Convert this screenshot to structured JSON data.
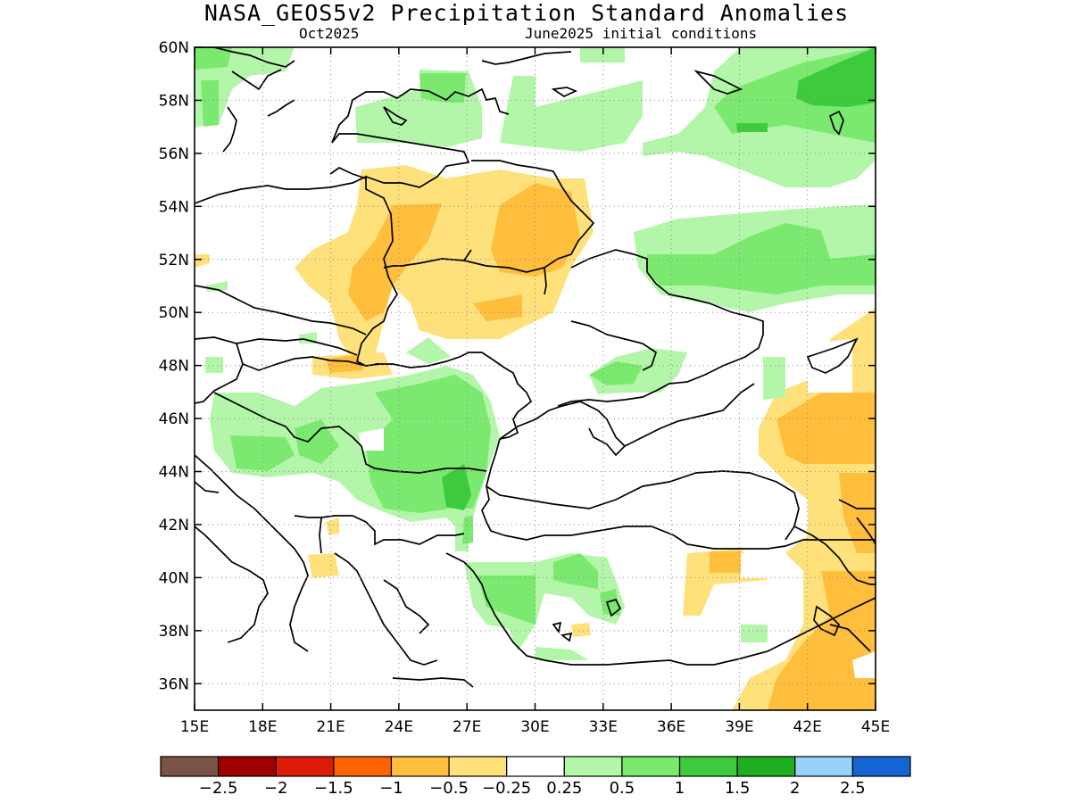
{
  "header": {
    "title": "NASA_GEOS5v2 Precipitation Standard Anomalies",
    "valid_month": "Oct2025",
    "init_conditions": "June2025 initial conditions"
  },
  "map": {
    "region": "Eastern Europe, Black Sea and Anatolia",
    "lon_range": [
      15,
      45
    ],
    "lat_range": [
      35,
      60
    ],
    "lon_ticks": [
      "15E",
      "18E",
      "21E",
      "24E",
      "27E",
      "30E",
      "33E",
      "36E",
      "39E",
      "42E",
      "45E"
    ],
    "lat_ticks": [
      "36N",
      "38N",
      "40N",
      "42N",
      "44N",
      "46N",
      "48N",
      "50N",
      "52N",
      "54N",
      "56N",
      "58N",
      "60N"
    ],
    "grid": "dotted"
  },
  "colorbar": {
    "colors": [
      "#7a5246",
      "#a00000",
      "#dd1b0b",
      "#ff6200",
      "#ffbe3c",
      "#ffe17c",
      "#ffffff",
      "#b3f6aa",
      "#7be96f",
      "#3dcb3d",
      "#1fae1f",
      "#96d2fa",
      "#1664d2"
    ],
    "labels": [
      "−2.5",
      "−2",
      "−1.5",
      "−1",
      "−0.5",
      "−0.25",
      "0.25",
      "0.5",
      "1",
      "1.5",
      "2",
      "2.5"
    ]
  }
}
